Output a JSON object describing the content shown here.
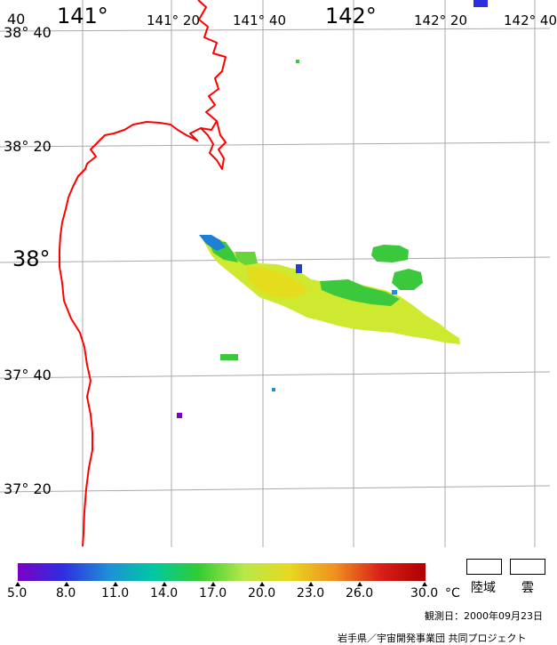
{
  "map": {
    "longitude_labels": [
      "141°",
      "141° 20",
      "141° 40",
      "142°",
      "142° 20",
      "142° 40"
    ],
    "latitude_labels": [
      "38° 40",
      "38° 20",
      "38°",
      "37° 40",
      "37° 20"
    ],
    "corner_label": "40",
    "colors": {
      "coastline": "#ff0000",
      "grid": "#aaaaaa",
      "background": "#ffffff"
    }
  },
  "colorbar": {
    "ticks": [
      "5.0",
      "8.0",
      "11.0",
      "14.0",
      "17.0",
      "20.0",
      "23.0",
      "26.0",
      "30.0"
    ],
    "unit": "°C",
    "gradient": [
      "#7a00c4",
      "#2e2ee0",
      "#1f8fd8",
      "#00c9a0",
      "#33cc33",
      "#b8e84a",
      "#e8d820",
      "#f09020",
      "#d82018",
      "#b00000"
    ]
  },
  "legend": {
    "land_label": "陸域",
    "cloud_label": "雲"
  },
  "footer": {
    "observation_date": "観測日：2000年09月23日",
    "credit": "岩手県／宇宙開発事業団 共同プロジェクト"
  }
}
